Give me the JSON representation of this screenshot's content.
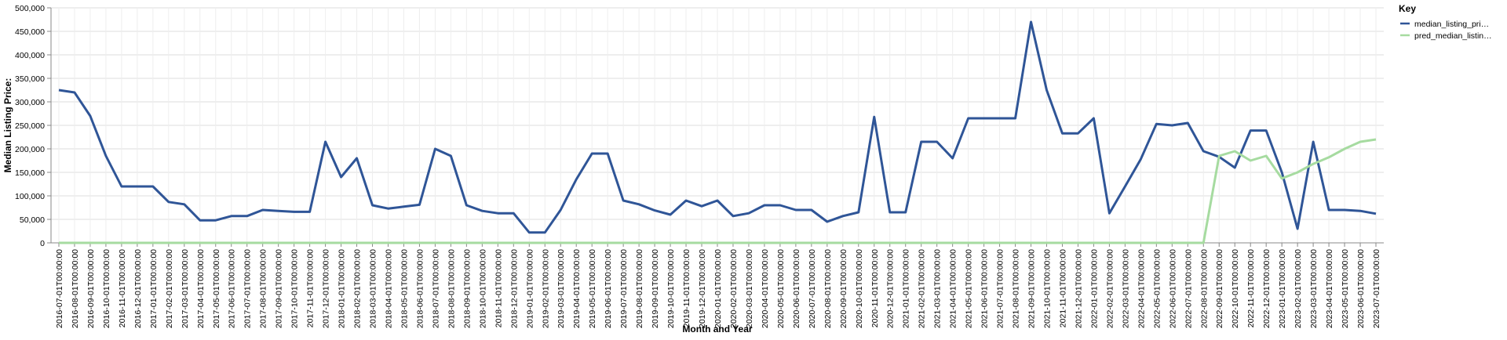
{
  "chart_data": {
    "type": "line",
    "x_label": "Month and Year",
    "y_label": "Median Listing Price:",
    "legend_title": "Key",
    "legend_position": "top-right",
    "grid": true,
    "categories": [
      "2016-07-01T00:00:00",
      "2016-08-01T00:00:00",
      "2016-09-01T00:00:00",
      "2016-10-01T00:00:00",
      "2016-11-01T00:00:00",
      "2016-12-01T00:00:00",
      "2017-01-01T00:00:00",
      "2017-02-01T00:00:00",
      "2017-03-01T00:00:00",
      "2017-04-01T00:00:00",
      "2017-05-01T00:00:00",
      "2017-06-01T00:00:00",
      "2017-07-01T00:00:00",
      "2017-08-01T00:00:00",
      "2017-09-01T00:00:00",
      "2017-10-01T00:00:00",
      "2017-11-01T00:00:00",
      "2017-12-01T00:00:00",
      "2018-01-01T00:00:00",
      "2018-02-01T00:00:00",
      "2018-03-01T00:00:00",
      "2018-04-01T00:00:00",
      "2018-05-01T00:00:00",
      "2018-06-01T00:00:00",
      "2018-07-01T00:00:00",
      "2018-08-01T00:00:00",
      "2018-09-01T00:00:00",
      "2018-10-01T00:00:00",
      "2018-11-01T00:00:00",
      "2018-12-01T00:00:00",
      "2019-01-01T00:00:00",
      "2019-02-01T00:00:00",
      "2019-03-01T00:00:00",
      "2019-04-01T00:00:00",
      "2019-05-01T00:00:00",
      "2019-06-01T00:00:00",
      "2019-07-01T00:00:00",
      "2019-08-01T00:00:00",
      "2019-09-01T00:00:00",
      "2019-10-01T00:00:00",
      "2019-11-01T00:00:00",
      "2019-12-01T00:00:00",
      "2020-01-01T00:00:00",
      "2020-02-01T00:00:00",
      "2020-03-01T00:00:00",
      "2020-04-01T00:00:00",
      "2020-05-01T00:00:00",
      "2020-06-01T00:00:00",
      "2020-07-01T00:00:00",
      "2020-08-01T00:00:00",
      "2020-09-01T00:00:00",
      "2020-10-01T00:00:00",
      "2020-11-01T00:00:00",
      "2020-12-01T00:00:00",
      "2021-01-01T00:00:00",
      "2021-02-01T00:00:00",
      "2021-03-01T00:00:00",
      "2021-04-01T00:00:00",
      "2021-05-01T00:00:00",
      "2021-06-01T00:00:00",
      "2021-07-01T00:00:00",
      "2021-08-01T00:00:00",
      "2021-09-01T00:00:00",
      "2021-10-01T00:00:00",
      "2021-11-01T00:00:00",
      "2021-12-01T00:00:00",
      "2022-01-01T00:00:00",
      "2022-02-01T00:00:00",
      "2022-03-01T00:00:00",
      "2022-04-01T00:00:00",
      "2022-05-01T00:00:00",
      "2022-06-01T00:00:00",
      "2022-07-01T00:00:00",
      "2022-08-01T00:00:00",
      "2022-09-01T00:00:00",
      "2022-10-01T00:00:00",
      "2022-11-01T00:00:00",
      "2022-12-01T00:00:00",
      "2023-01-01T00:00:00",
      "2023-02-01T00:00:00",
      "2023-03-01T00:00:00",
      "2023-04-01T00:00:00",
      "2023-05-01T00:00:00",
      "2023-06-01T00:00:00",
      "2023-07-01T00:00:00"
    ],
    "series": [
      {
        "name": "median_listing_pri…",
        "color": "#2f5597",
        "values": [
          325000,
          320000,
          270000,
          185000,
          120000,
          120000,
          120000,
          87000,
          82000,
          48000,
          48000,
          57000,
          57000,
          70000,
          68000,
          66000,
          66000,
          215000,
          140000,
          180000,
          80000,
          73000,
          77000,
          81000,
          200000,
          185000,
          80000,
          68000,
          63000,
          63000,
          22000,
          22000,
          70000,
          135000,
          190000,
          190000,
          90000,
          82000,
          69000,
          60000,
          90000,
          78000,
          90000,
          57000,
          63000,
          80000,
          80000,
          70000,
          70000,
          45000,
          57000,
          65000,
          268000,
          65000,
          65000,
          215000,
          215000,
          180000,
          265000,
          265000,
          265000,
          265000,
          470000,
          325000,
          233000,
          233000,
          265000,
          63000,
          120000,
          178000,
          253000,
          250000,
          255000,
          195000,
          183000,
          160000,
          239000,
          239000,
          150000,
          30000,
          215000,
          70000,
          70000,
          68000,
          62000
        ]
      },
      {
        "name": "pred_median_listin…",
        "color": "#a6dba0",
        "values": [
          0,
          0,
          0,
          0,
          0,
          0,
          0,
          0,
          0,
          0,
          0,
          0,
          0,
          0,
          0,
          0,
          0,
          0,
          0,
          0,
          0,
          0,
          0,
          0,
          0,
          0,
          0,
          0,
          0,
          0,
          0,
          0,
          0,
          0,
          0,
          0,
          0,
          0,
          0,
          0,
          0,
          0,
          0,
          0,
          0,
          0,
          0,
          0,
          0,
          0,
          0,
          0,
          0,
          0,
          0,
          0,
          0,
          0,
          0,
          0,
          0,
          0,
          0,
          0,
          0,
          0,
          0,
          0,
          0,
          0,
          0,
          0,
          0,
          0,
          185000,
          195000,
          175000,
          185000,
          137000,
          150000,
          168000,
          182000,
          200000,
          215000,
          220000
        ]
      }
    ],
    "ylim": [
      0,
      500000
    ],
    "yticks": [
      0,
      {
        "value": 50000,
        "label": "50,000"
      },
      {
        "value": 100000,
        "label": "100,000"
      },
      {
        "value": 150000,
        "label": "150,000"
      },
      {
        "value": 200000,
        "label": "200,000"
      },
      {
        "value": 250000,
        "label": "250,000"
      },
      {
        "value": 300000,
        "label": "300,000"
      },
      {
        "value": 350000,
        "label": "350,000"
      },
      {
        "value": 400000,
        "label": "400,000"
      },
      {
        "value": 450000,
        "label": "450,000"
      },
      {
        "value": 500000,
        "label": "500,000"
      }
    ]
  }
}
